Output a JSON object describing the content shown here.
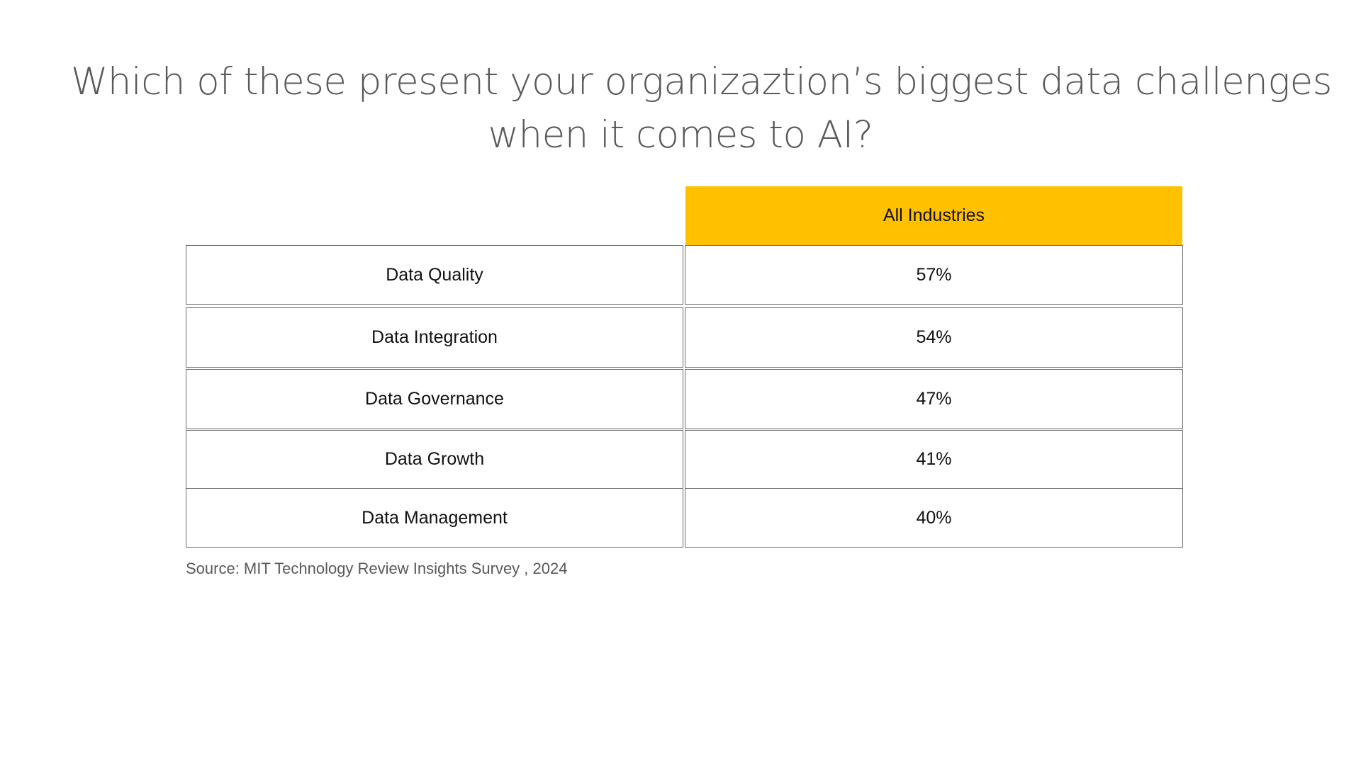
{
  "title": {
    "line1": "Which of these present your organizaztion’s biggest data challenges",
    "line2": "when it comes to AI?"
  },
  "table": {
    "column_header": "All Industries",
    "rows": [
      {
        "label": "Data Quality",
        "value": "57%"
      },
      {
        "label": "Data Integration",
        "value": "54%"
      },
      {
        "label": "Data Governance",
        "value": "47%"
      },
      {
        "label": "Data Growth",
        "value": "41%"
      },
      {
        "label": "Data Management",
        "value": "40%"
      }
    ]
  },
  "source": "Source: MIT Technology Review Insights Survey , 2024",
  "colors": {
    "header_fill": "#ffc000",
    "title_text": "#595959",
    "cell_border": "#6b6b6b"
  }
}
